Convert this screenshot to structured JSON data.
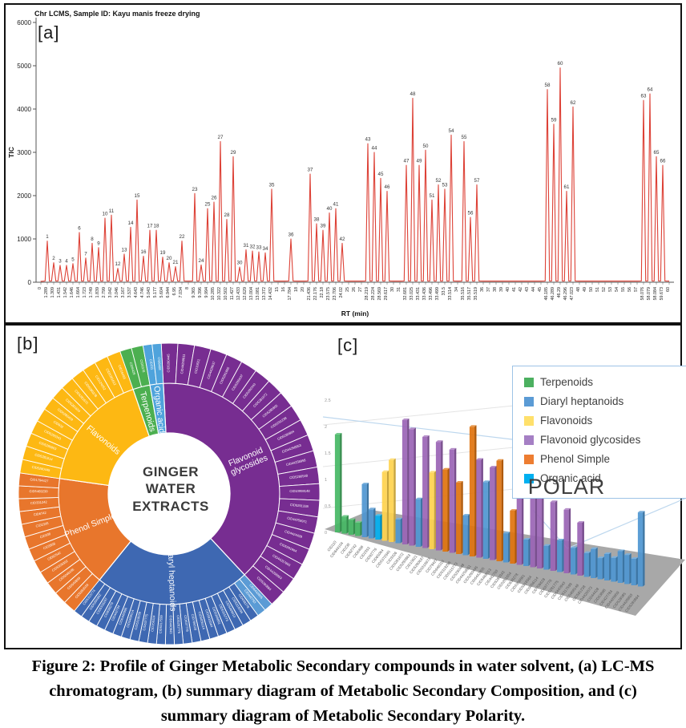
{
  "caption": {
    "lines": [
      "Figure 2: Profile of Ginger Metabolic Secondary compounds in water solvent, (a) LC-MS",
      "chromatogram, (b) summary diagram of Metabolic Secondary Composition, and (c)",
      "summary diagram of Metabolic Secondary Polarity."
    ]
  },
  "panels": {
    "a_label": "[a]",
    "b_label": "[b]",
    "c_label": "[c]"
  },
  "colors": {
    "trace": "#DD4136",
    "axis": "#555555",
    "terpenoids": "#4CAF50",
    "diaryl_heptanoids": "#3E68B2",
    "diaryl_light": "#5B9BD5",
    "flavonoids": "#FDB813",
    "flavonoid_glycosides": "#772D91",
    "phenol_simple": "#E8762C",
    "organic_acid": "#4FA3DC",
    "bar_green": "#45B764",
    "bar_blue": "#4E96D1",
    "bar_yellow": "#FFD34D",
    "bar_purple": "#9A64B5",
    "bar_orange": "#DF730E",
    "bar_cyan": "#00B0F0",
    "floor": "#A8A8A8",
    "callout": "#BDD7EE"
  },
  "legend": {
    "items": [
      {
        "label": "Terpenoids",
        "color": "#4CB060"
      },
      {
        "label": "Diaryl heptanoids",
        "color": "#5B9BD5"
      },
      {
        "label": "Flavonoids",
        "color": "#FFE06B"
      },
      {
        "label": "Flavonoid glycosides",
        "color": "#A57FC4"
      },
      {
        "label": "Phenol Simple",
        "color": "#ED7D31"
      },
      {
        "label": "Organic acid",
        "color": "#00B0F0"
      }
    ],
    "polar_label": "POLAR"
  },
  "chart_data": [
    {
      "type": "line",
      "name": "lcms-chromatogram",
      "title": "Chr LCMS, Sample ID: Kayu manis freeze drying",
      "xlabel": "RT (min)",
      "ylabel": "TIC",
      "ylim": [
        0,
        6000
      ],
      "yticks": [
        0,
        1000,
        2000,
        3000,
        4000,
        5000,
        6000
      ],
      "points_note": "[rt_tick_label, TIC_height, peak_number(0=unlabeled baseline)]",
      "points": [
        [
          "0",
          20,
          0
        ],
        [
          "1.289",
          950,
          1
        ],
        [
          "1.309",
          450,
          2
        ],
        [
          "1.431",
          390,
          3
        ],
        [
          "1.542",
          390,
          4
        ],
        [
          "1.646",
          430,
          5
        ],
        [
          "1.664",
          1150,
          6
        ],
        [
          "1.723",
          560,
          7
        ],
        [
          "1.749",
          900,
          8
        ],
        [
          "1.839",
          800,
          9
        ],
        [
          "2.799",
          1480,
          10
        ],
        [
          "3.042",
          1550,
          11
        ],
        [
          "3.046",
          320,
          12
        ],
        [
          "3.167",
          650,
          13
        ],
        [
          "3.537",
          1270,
          14
        ],
        [
          "4.643",
          1900,
          15
        ],
        [
          "4.746",
          600,
          16
        ],
        [
          "5.043",
          1200,
          17
        ],
        [
          "5.177",
          1200,
          18
        ],
        [
          "5.604",
          580,
          19
        ],
        [
          "6.944",
          450,
          20
        ],
        [
          "6.95",
          360,
          21
        ],
        [
          "7.034",
          950,
          22
        ],
        [
          "8",
          25,
          0
        ],
        [
          "9.365",
          2050,
          23
        ],
        [
          "9.396",
          400,
          24
        ],
        [
          "9.994",
          1700,
          25
        ],
        [
          "10.285",
          1850,
          26
        ],
        [
          "10.322",
          3250,
          27
        ],
        [
          "10.502",
          1450,
          28
        ],
        [
          "11.427",
          2900,
          29
        ],
        [
          "12.433",
          350,
          30
        ],
        [
          "12.629",
          750,
          31
        ],
        [
          "13.004",
          720,
          32
        ],
        [
          "13.081",
          700,
          33
        ],
        [
          "13.372",
          680,
          34
        ],
        [
          "14.432",
          2150,
          35
        ],
        [
          "15",
          25,
          0
        ],
        [
          "16",
          25,
          0
        ],
        [
          "17.784",
          1000,
          36
        ],
        [
          "18",
          25,
          0
        ],
        [
          "20",
          25,
          0
        ],
        [
          "21.436",
          2500,
          37
        ],
        [
          "22.176",
          1350,
          38
        ],
        [
          "22.18",
          1200,
          39
        ],
        [
          "23.575",
          1600,
          40
        ],
        [
          "23.706",
          1700,
          41
        ],
        [
          "24.02",
          900,
          42
        ],
        [
          "25",
          25,
          0
        ],
        [
          "26",
          25,
          0
        ],
        [
          "27",
          25,
          0
        ],
        [
          "28.219",
          3200,
          43
        ],
        [
          "28.224",
          3000,
          44
        ],
        [
          "28.569",
          2400,
          45
        ],
        [
          "29.617",
          2100,
          46
        ],
        [
          "30",
          25,
          0
        ],
        [
          "31",
          25,
          0
        ],
        [
          "32.681",
          2700,
          47
        ],
        [
          "33.025",
          4250,
          48
        ],
        [
          "33.431",
          2700,
          49
        ],
        [
          "33.436",
          3050,
          50
        ],
        [
          "33.496",
          1900,
          51
        ],
        [
          "33.499",
          2250,
          52
        ],
        [
          "33.5",
          2150,
          53
        ],
        [
          "33.514",
          3400,
          54
        ],
        [
          "34",
          25,
          0
        ],
        [
          "35.516",
          3250,
          55
        ],
        [
          "35.517",
          1500,
          56
        ],
        [
          "35.519",
          2250,
          57
        ],
        [
          "36",
          25,
          0
        ],
        [
          "37",
          25,
          0
        ],
        [
          "38",
          25,
          0
        ],
        [
          "39",
          25,
          0
        ],
        [
          "40",
          25,
          0
        ],
        [
          "41",
          25,
          0
        ],
        [
          "42",
          25,
          0
        ],
        [
          "43",
          25,
          0
        ],
        [
          "44",
          25,
          0
        ],
        [
          "45",
          25,
          0
        ],
        [
          "46.185",
          4450,
          58
        ],
        [
          "46.289",
          3650,
          59
        ],
        [
          "46.29",
          4950,
          60
        ],
        [
          "46.296",
          2100,
          61
        ],
        [
          "47.023",
          4050,
          62
        ],
        [
          "48",
          25,
          0
        ],
        [
          "49",
          25,
          0
        ],
        [
          "50",
          25,
          0
        ],
        [
          "51",
          25,
          0
        ],
        [
          "52",
          25,
          0
        ],
        [
          "53",
          25,
          0
        ],
        [
          "54",
          25,
          0
        ],
        [
          "55",
          25,
          0
        ],
        [
          "56",
          25,
          0
        ],
        [
          "57",
          25,
          0
        ],
        [
          "58.076",
          4200,
          63
        ],
        [
          "58.079",
          4350,
          64
        ],
        [
          "58.084",
          2900,
          65
        ],
        [
          "59.673",
          2700,
          66
        ],
        [
          "60",
          25,
          0
        ]
      ]
    },
    {
      "type": "pie",
      "name": "composition-sunburst",
      "center_lines": [
        "GINGER",
        "WATER",
        "EXTRACTS"
      ],
      "angles_note": "degrees clockwise from 12 o'clock",
      "categories": [
        {
          "key": "flavonoid_glycosides",
          "name": "Flavonoid glycosides",
          "start": -3,
          "end": 137,
          "compounds": [
            "CID5280445",
            "CID44259911",
            "CID10621",
            "CID4428637",
            "CID5281605",
            "CID5280637",
            "CID5280343",
            "CID5281672",
            "CID5280805",
            "CID5291238",
            "CID5280804",
            "CID44258953",
            "CID44258958",
            "CID5280548",
            "CID10959148",
            "CID5291338",
            "CID44258971",
            "CID4424428",
            "CID5281864",
            "CID44257866",
            "CID44258959",
            "CID5280864"
          ]
        },
        {
          "key": "diaryl_heptanoids",
          "name": "Diaryl heptanoids",
          "start": 137,
          "end": 219,
          "light_first": 2,
          "compounds": [
            "CID6442805",
            "CID442793",
            "CID638278",
            "CID5318296",
            "CID5469013",
            "CID5315773",
            "CID5356861",
            "CID5916564",
            "CID9056114",
            "CID706628",
            "CID637776",
            "CID5281775",
            "CID6440943",
            "CID5317599",
            "CID156114",
            "CID637775",
            "CID5318039",
            "CID5469014",
            "CID6442806",
            "CID442794",
            "CID638279",
            "CID5318297",
            "CID5356862",
            "CID5315774"
          ]
        },
        {
          "key": "phenol_simple",
          "name": "Phenol Simple",
          "start": 219,
          "end": 278,
          "compounds": [
            "CID5282039",
            "CID640859",
            "CID5046395",
            "CID5326392",
            "CID62542",
            "CID3868",
            "CID338",
            "CID2335",
            "CID6742",
            "CID331242",
            "CID5469239",
            "CID1794427"
          ]
        },
        {
          "key": "flavonoids",
          "name": "Flavonoids",
          "start": 278,
          "end": 341,
          "compounds": [
            "CID5280445",
            "CID5281614",
            "CID5280863",
            "CID5280343",
            "CID932",
            "CID5280459",
            "CID5281654",
            "CID5281672",
            "CID5280378",
            "CID124052",
            "CID5281612",
            "CID16493"
          ]
        },
        {
          "key": "terpenoids",
          "name": "Terpenoids",
          "start": 341,
          "end": 350,
          "compounds": [
            "CID6429",
            "CID6378"
          ]
        },
        {
          "key": "organic_acid",
          "name": "Organic acid",
          "start": 350,
          "end": 357,
          "compounds": [
            "CID311",
            "CID8468"
          ]
        }
      ]
    },
    {
      "type": "bar",
      "name": "polarity-3d-bars",
      "ylim": [
        0,
        2.5
      ],
      "yticks": [
        0,
        0.5,
        1,
        1.5,
        2,
        2.5
      ],
      "bars_note": "[category_key, value, x_label]",
      "bars": [
        [
          "terpenoids",
          1.85,
          "CID110"
        ],
        [
          "terpenoids",
          0.32,
          "CID644104"
        ],
        [
          "terpenoids",
          0.28,
          "CID238"
        ],
        [
          "terpenoids",
          0.25,
          "CID62742"
        ],
        [
          "diaryl",
          1.0,
          "CID6488"
        ],
        [
          "diaryl",
          0.55,
          "CID2353"
        ],
        [
          "organic",
          0.45,
          "CID92776"
        ],
        [
          "flavonoids",
          1.3,
          "CID65064"
        ],
        [
          "flavonoids",
          1.55,
          "CID5372945"
        ],
        [
          "diaryl",
          0.45,
          "CID3026"
        ],
        [
          "glycosides",
          2.35,
          "CID5281672"
        ],
        [
          "glycosides",
          2.2,
          "CID5280863"
        ],
        [
          "diaryl",
          0.9,
          "CID10621"
        ],
        [
          "glycosides",
          2.1,
          "CID5280637"
        ],
        [
          "flavonoids",
          1.45,
          "CID5316673"
        ],
        [
          "glycosides",
          2.05,
          "CID79427"
        ],
        [
          "phenol",
          1.55,
          "CID646310"
        ],
        [
          "glycosides",
          1.95,
          "CID5318296"
        ],
        [
          "phenol",
          1.35,
          "CID5315773"
        ],
        [
          "diaryl",
          0.75,
          "CID5280448"
        ],
        [
          "phenol",
          2.45,
          "CID44259911"
        ],
        [
          "glycosides",
          1.85,
          "CID5280445"
        ],
        [
          "diaryl",
          1.45,
          "CID6442805"
        ],
        [
          "glycosides",
          1.75,
          "CID5469013"
        ],
        [
          "phenol",
          1.9,
          "CID442793"
        ],
        [
          "diaryl",
          0.55,
          "CID5280343"
        ],
        [
          "phenol",
          1.0,
          "CID5281654"
        ],
        [
          "glycosides",
          1.65,
          "CID638278"
        ],
        [
          "diaryl",
          0.5,
          "CID5356861"
        ],
        [
          "glycosides",
          1.55,
          "CID5916564"
        ],
        [
          "glycosides",
          1.45,
          "CID9056114"
        ],
        [
          "diaryl",
          0.45,
          "CID706628"
        ],
        [
          "glycosides",
          1.3,
          "CID637776"
        ],
        [
          "diaryl",
          0.6,
          "CID5281775"
        ],
        [
          "glycosides",
          1.2,
          "CID6440943"
        ],
        [
          "diaryl",
          0.5,
          "CID5317599"
        ],
        [
          "glycosides",
          1.0,
          "CID5468148"
        ],
        [
          "diaryl",
          0.45,
          "CID581238"
        ],
        [
          "diaryl",
          0.55,
          "CID4425573"
        ],
        [
          "diaryl",
          0.4,
          "CID44428"
        ],
        [
          "diaryl",
          0.5,
          "CID53868"
        ],
        [
          "diaryl",
          0.45,
          "CID427784"
        ],
        [
          "diaryl",
          0.6,
          "CID4428959"
        ],
        [
          "diaryl",
          0.55,
          "CID528085"
        ],
        [
          "diaryl",
          0.5,
          "CID4428893"
        ],
        [
          "diaryl",
          1.4,
          "CID5280864"
        ]
      ]
    }
  ]
}
